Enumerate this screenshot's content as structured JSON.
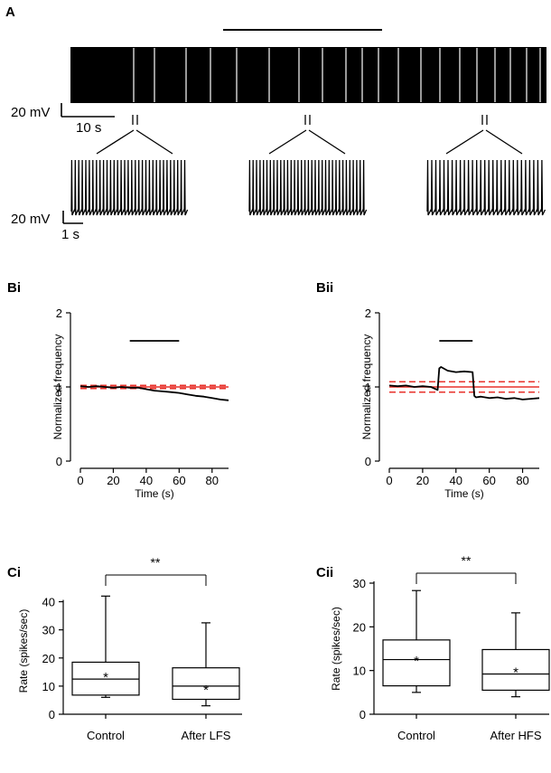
{
  "panels": {
    "A": {
      "label": "A",
      "scale_top": {
        "voltage": "20 mV",
        "time": "10 s"
      },
      "scale_bottom": {
        "voltage": "20 mV",
        "time": "1 s"
      },
      "insets": 3
    },
    "Bi": {
      "label": "Bi"
    },
    "Bii": {
      "label": "Bii"
    },
    "Ci": {
      "label": "Ci",
      "significance": "**"
    },
    "Cii": {
      "label": "Cii",
      "significance": "**"
    }
  },
  "colors": {
    "trace": "#000000",
    "band": "#e8322b"
  },
  "chart_data": [
    {
      "id": "Bi",
      "type": "line",
      "xlabel": "Time (s)",
      "ylabel": "Normalized frequency",
      "xlim": [
        0,
        90
      ],
      "ylim": [
        0,
        2
      ],
      "xticks": [
        "0",
        "20",
        "40",
        "60",
        "80"
      ],
      "yticks": [
        "0",
        "1",
        "2"
      ],
      "stim_bar": [
        30,
        60
      ],
      "reference": {
        "mean": 1.0,
        "upper": 1.02,
        "lower": 0.98
      },
      "x": [
        0,
        5,
        10,
        15,
        20,
        25,
        30,
        35,
        40,
        45,
        50,
        55,
        60,
        65,
        70,
        75,
        80,
        85,
        90
      ],
      "values": [
        1.01,
        1.0,
        1.01,
        1.0,
        0.99,
        1.0,
        0.99,
        0.99,
        0.97,
        0.95,
        0.94,
        0.93,
        0.92,
        0.9,
        0.88,
        0.87,
        0.85,
        0.83,
        0.82
      ]
    },
    {
      "id": "Bii",
      "type": "line",
      "xlabel": "Time (s)",
      "ylabel": "Normalized frequency",
      "xlim": [
        0,
        90
      ],
      "ylim": [
        0,
        2
      ],
      "xticks": [
        "0",
        "20",
        "40",
        "60",
        "80"
      ],
      "yticks": [
        "0",
        "1",
        "2"
      ],
      "stim_bar": [
        30,
        50
      ],
      "reference": {
        "mean": 1.0,
        "upper": 1.07,
        "lower": 0.93
      },
      "x": [
        0,
        5,
        10,
        15,
        20,
        25,
        29,
        30,
        31,
        35,
        40,
        45,
        50,
        51,
        52,
        55,
        60,
        65,
        70,
        75,
        80,
        85,
        90
      ],
      "values": [
        1.02,
        1.01,
        1.02,
        1.0,
        1.01,
        1.0,
        0.96,
        1.25,
        1.27,
        1.22,
        1.2,
        1.21,
        1.2,
        0.88,
        0.86,
        0.87,
        0.85,
        0.86,
        0.84,
        0.85,
        0.83,
        0.84,
        0.85
      ]
    },
    {
      "id": "Ci",
      "type": "box",
      "ylabel": "Rate (spikes/sec)",
      "ylim": [
        0,
        45
      ],
      "yticks": [
        "0",
        "10",
        "20",
        "30",
        "40"
      ],
      "categories": [
        "Control",
        "After LFS"
      ],
      "series": [
        {
          "name": "Control",
          "min": 6,
          "q1": 6.8,
          "median": 12.5,
          "q3": 18.5,
          "max": 42,
          "mean": 14.5
        },
        {
          "name": "After LFS",
          "min": 3,
          "q1": 5.3,
          "median": 10,
          "q3": 16.5,
          "max": 32.5,
          "mean": 10
        }
      ]
    },
    {
      "id": "Cii",
      "type": "box",
      "ylabel": "Rate (spikes/sec)",
      "ylim": [
        0,
        30
      ],
      "yticks": [
        "0",
        "10",
        "20",
        "30"
      ],
      "categories": [
        "Control",
        "After HFS"
      ],
      "series": [
        {
          "name": "Control",
          "min": 5,
          "q1": 6.5,
          "median": 12.5,
          "q3": 17,
          "max": 28.3,
          "mean": 13
        },
        {
          "name": "After HFS",
          "min": 4,
          "q1": 5.5,
          "median": 9.2,
          "q3": 14.8,
          "max": 23.2,
          "mean": 10.5
        }
      ]
    }
  ]
}
